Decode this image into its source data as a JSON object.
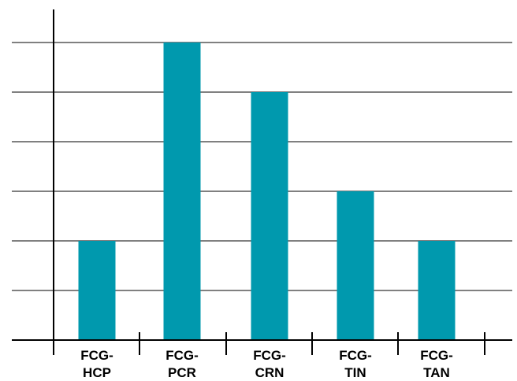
{
  "chart_data": {
    "type": "bar",
    "categories": [
      [
        "FCG-",
        "HCP"
      ],
      [
        "FCG-",
        "PCR"
      ],
      [
        "FCG-",
        "CRN"
      ],
      [
        "FCG-",
        "TIN"
      ],
      [
        "FCG-",
        "TAN"
      ]
    ],
    "values": [
      2,
      6,
      5,
      3,
      2
    ],
    "ylim": [
      0,
      6
    ],
    "grid": true,
    "bar_color": "#0099AE",
    "title": "",
    "xlabel": "",
    "ylabel": ""
  }
}
